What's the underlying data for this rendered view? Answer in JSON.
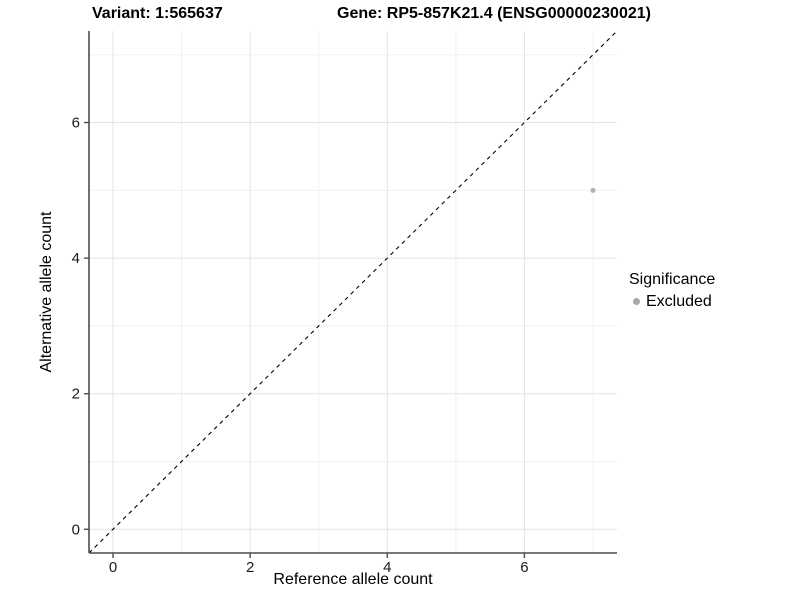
{
  "header": {
    "variant_title": "Variant: 1:565637",
    "gene_title": "Gene: RP5-857K21.4 (ENSG00000230021)"
  },
  "axes": {
    "x_label": "Reference allele count",
    "y_label": "Alternative allele count"
  },
  "legend": {
    "title": "Significance",
    "items": [
      {
        "label": "Excluded",
        "color": "#a8a8a8"
      }
    ]
  },
  "colors": {
    "background": "#ffffff",
    "axis_line": "#4d4d4d",
    "tick_label": "#1a1a1a",
    "grid_major": "#e3e3e3",
    "grid_minor": "#f1f1f1",
    "point": "#b3b3b3",
    "identity_line": "#000000"
  },
  "chart_data": {
    "type": "scatter",
    "title": "Variant: 1:565637 | Gene: RP5-857K21.4 (ENSG00000230021)",
    "xlabel": "Reference allele count",
    "ylabel": "Alternative allele count",
    "xlim": [
      -0.35,
      7.35
    ],
    "ylim": [
      -0.35,
      7.35
    ],
    "x_ticks": [
      0,
      2,
      4,
      6
    ],
    "y_ticks": [
      0,
      2,
      4,
      6
    ],
    "x_minor": [
      1,
      3,
      5,
      7
    ],
    "y_minor": [
      1,
      3,
      5,
      7
    ],
    "grid": true,
    "legend_position": "right",
    "series": [
      {
        "name": "Excluded",
        "color": "#b3b3b3",
        "points": [
          {
            "x": 7,
            "y": 5
          }
        ]
      }
    ],
    "reference_line": {
      "kind": "identity",
      "slope": 1,
      "intercept": 0,
      "style": "dashed"
    }
  }
}
